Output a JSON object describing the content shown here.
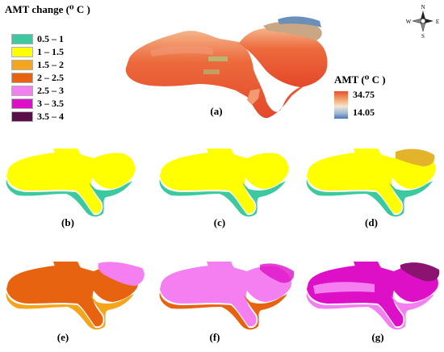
{
  "legend": {
    "title": "AMT change (⁰ C )",
    "items": [
      {
        "label": "0.5 – 1",
        "color": "#3cc9a0"
      },
      {
        "label": "1 – 1.5",
        "color": "#ffff00"
      },
      {
        "label": "1.5 – 2",
        "color": "#f4a51c"
      },
      {
        "label": "2 – 2.5",
        "color": "#e8630f"
      },
      {
        "label": "2.5 – 3",
        "color": "#f37ff0"
      },
      {
        "label": "3 – 3.5",
        "color": "#dd10c8"
      },
      {
        "label": "3.5 – 4",
        "color": "#5a0f4a"
      }
    ]
  },
  "colorbar": {
    "title": "AMT (⁰ C )",
    "max": "34.75",
    "min": "14.05"
  },
  "compass": {
    "n": "N",
    "s": "S",
    "e": "E",
    "w": "W"
  },
  "panels": [
    {
      "label": "(a)"
    },
    {
      "label": "(b)"
    },
    {
      "label": "(c)"
    },
    {
      "label": "(d)"
    },
    {
      "label": "(e)"
    },
    {
      "label": "(f)"
    },
    {
      "label": "(g)"
    }
  ]
}
